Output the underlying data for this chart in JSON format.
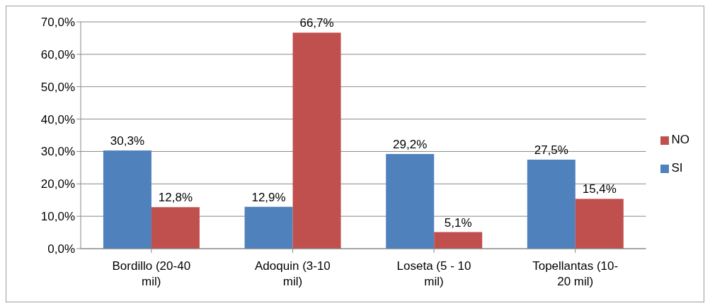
{
  "chart_data": {
    "type": "bar",
    "categories": [
      "Bordillo (20-40 mil)",
      "Adoquin (3-10 mil)",
      "Loseta (5 - 10 mil)",
      "Topellantas (10-20 mil)"
    ],
    "series": [
      {
        "name": "SI",
        "color": "#4f81bd",
        "values": [
          30.3,
          12.9,
          29.2,
          27.5
        ],
        "value_labels": [
          "30,3%",
          "12,9%",
          "29,2%",
          "27,5%"
        ]
      },
      {
        "name": "NO",
        "color": "#c0504d",
        "values": [
          12.8,
          66.7,
          5.1,
          15.4
        ],
        "value_labels": [
          "12,8%",
          "66,7%",
          "5,1%",
          "15,4%"
        ]
      }
    ],
    "ylim": [
      0,
      70
    ],
    "yticks": [
      {
        "value": 0,
        "label": "0,0%"
      },
      {
        "value": 10,
        "label": "10,0%"
      },
      {
        "value": 20,
        "label": "20,0%"
      },
      {
        "value": 30,
        "label": "30,0%"
      },
      {
        "value": 40,
        "label": "40,0%"
      },
      {
        "value": 50,
        "label": "50,0%"
      },
      {
        "value": 60,
        "label": "60,0%"
      },
      {
        "value": 70,
        "label": "70,0%"
      }
    ],
    "grid": "y",
    "legend": "right"
  }
}
